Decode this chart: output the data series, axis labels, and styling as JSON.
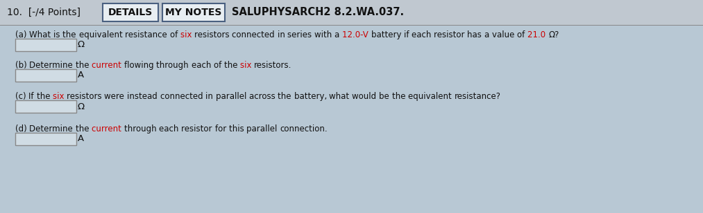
{
  "bg_color": "#c8d0d8",
  "header_bg": "#c0c8d0",
  "content_bg": "#b8c8d4",
  "top_label": "10.  [-/4 Points]",
  "btn1": "DETAILS",
  "btn2": "MY NOTES",
  "header_code": "SALUPHYSARCH2 8.2.WA.037.",
  "question_a": "(a) What is the equivalent resistance of six resistors connected in series with a 12.0-V battery if each resistor has a value of 21.0 Ω?",
  "unit_a": "Ω",
  "question_b": "(b) Determine the current flowing through each of the six resistors.",
  "unit_b": "A",
  "question_c": "(c) If the six resistors were instead connected in parallel across the battery, what would be the equivalent resistance?",
  "unit_c": "Ω",
  "question_d": "(d) Determine the current through each resistor for this parallel connection.",
  "unit_d": "A",
  "highlight_color": "#cc0000",
  "highlight_words_a": [
    "six",
    "12.0",
    "21.0"
  ],
  "highlight_words_b": [
    "current",
    "six"
  ],
  "highlight_words_c": [
    "six"
  ],
  "highlight_words_d": [
    "current"
  ],
  "text_color": "#111111",
  "header_text_color": "#111111",
  "font_size_header": 10.0,
  "font_size_question": 8.5,
  "font_size_unit": 9.5,
  "box_facecolor": "#d0dce4",
  "box_edgecolor": "#888888",
  "btn_facecolor": "#e8eef2",
  "btn_edgecolor": "#4a6080",
  "header_code_bold": true
}
